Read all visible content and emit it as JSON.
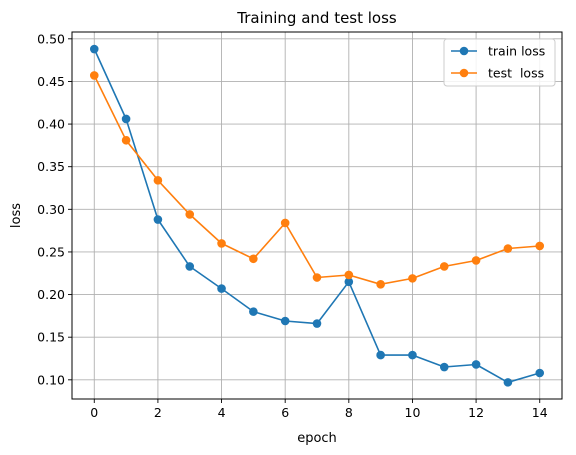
{
  "chart_data": {
    "type": "line",
    "title": "Training and test loss",
    "xlabel": "epoch",
    "ylabel": "loss",
    "x": [
      0,
      1,
      2,
      3,
      4,
      5,
      6,
      7,
      8,
      9,
      10,
      11,
      12,
      13,
      14
    ],
    "series": [
      {
        "name": "train loss",
        "color": "#1f77b4",
        "values": [
          0.488,
          0.406,
          0.288,
          0.233,
          0.207,
          0.18,
          0.169,
          0.166,
          0.215,
          0.129,
          0.129,
          0.115,
          0.118,
          0.097,
          0.108
        ]
      },
      {
        "name": "test  loss",
        "color": "#ff7f0e",
        "values": [
          0.457,
          0.381,
          0.334,
          0.294,
          0.26,
          0.242,
          0.284,
          0.22,
          0.223,
          0.212,
          0.219,
          0.233,
          0.24,
          0.254,
          0.257
        ]
      }
    ],
    "xlim": [
      -0.7,
      14.7
    ],
    "ylim": [
      0.0775,
      0.508
    ],
    "xticks": [
      0,
      2,
      4,
      6,
      8,
      10,
      12,
      14
    ],
    "yticks": [
      0.1,
      0.15,
      0.2,
      0.25,
      0.3,
      0.35,
      0.4,
      0.45,
      0.5
    ],
    "grid": true,
    "legend_position": "top-right"
  }
}
